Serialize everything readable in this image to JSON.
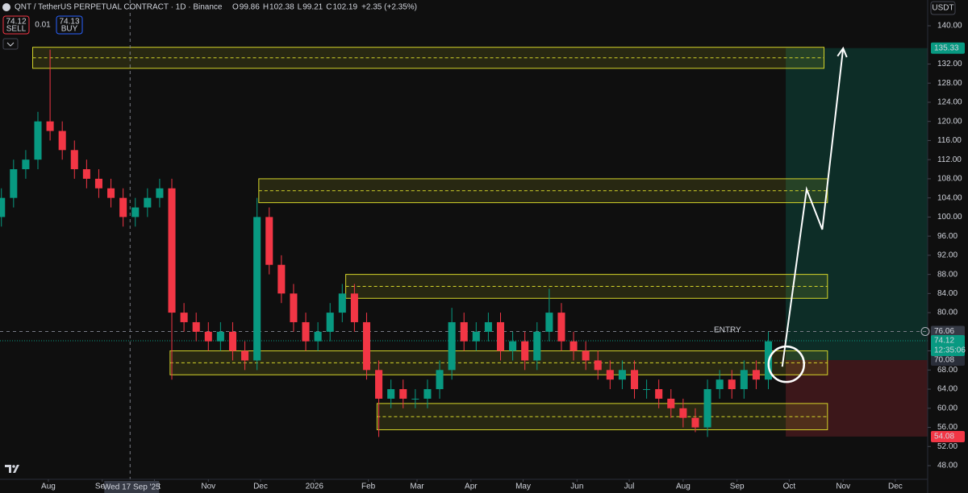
{
  "chart_data": {
    "type": "candlestick",
    "header": {
      "title": "QNT / TetherUS PERPETUAL CONTRACT · 1D · Binance",
      "ohlc": [
        {
          "label": "O",
          "value": "99.86"
        },
        {
          "label": "H",
          "value": "102.38"
        },
        {
          "label": "L",
          "value": "99.21"
        },
        {
          "label": "C",
          "value": "102.19"
        },
        {
          "label": "",
          "value": "+2.35 (+2.35%)"
        }
      ],
      "sell_price": "74.12",
      "sell_label": "SELL",
      "spread": "0.01",
      "buy_price": "74.13",
      "buy_label": "BUY",
      "currency": "USDT"
    },
    "x": [
      -27,
      -20,
      -13,
      -6,
      1,
      8,
      15,
      22,
      29,
      36,
      43,
      50,
      57,
      64,
      71,
      78,
      85,
      92,
      99,
      106,
      113,
      120,
      127,
      134,
      141,
      148,
      155,
      162,
      169,
      176,
      183,
      190,
      197,
      204,
      211,
      218,
      225,
      232,
      239,
      246,
      253,
      260,
      267,
      274,
      281,
      288,
      295,
      302,
      309,
      316,
      323,
      330,
      337,
      344,
      351,
      358,
      365,
      372,
      379,
      386,
      393,
      400,
      407,
      414
    ],
    "open": [
      100,
      104,
      110,
      112,
      120,
      118,
      114,
      110,
      108,
      106,
      104,
      100,
      102,
      104,
      106,
      80,
      78,
      76,
      74,
      76,
      72,
      70,
      100,
      90,
      84,
      78,
      74,
      76,
      80,
      84,
      78,
      68,
      62,
      64,
      62,
      62,
      64,
      68,
      78,
      74,
      76,
      78,
      72,
      74,
      70,
      76,
      80,
      74,
      72,
      70,
      68,
      66,
      68,
      64,
      64,
      62,
      60,
      58,
      56,
      64,
      66,
      64,
      68,
      66
    ],
    "high": [
      106,
      112,
      114,
      122,
      135,
      120,
      116,
      112,
      110,
      108,
      106,
      104,
      106,
      108,
      108,
      82,
      80,
      78,
      78,
      78,
      74,
      104,
      102,
      92,
      86,
      80,
      78,
      82,
      86,
      86,
      80,
      70,
      66,
      66,
      64,
      66,
      70,
      81,
      80,
      78,
      80,
      80,
      76,
      76,
      78,
      85,
      82,
      76,
      74,
      72,
      70,
      70,
      70,
      66,
      66,
      64,
      62,
      60,
      66,
      68,
      68,
      70,
      70,
      76
    ],
    "low": [
      98,
      102,
      108,
      110,
      116,
      112,
      108,
      106,
      104,
      102,
      98,
      98,
      100,
      102,
      66,
      76,
      74,
      72,
      72,
      70,
      68,
      68,
      88,
      82,
      76,
      72,
      72,
      74,
      78,
      76,
      66,
      54,
      60,
      60,
      60,
      60,
      62,
      66,
      72,
      72,
      74,
      70,
      70,
      68,
      68,
      74,
      72,
      70,
      68,
      66,
      64,
      64,
      62,
      62,
      60,
      58,
      56,
      55,
      54,
      62,
      62,
      62,
      64,
      64
    ],
    "close": [
      104,
      110,
      112,
      120,
      118,
      114,
      110,
      108,
      106,
      104,
      100,
      102,
      104,
      106,
      80,
      78,
      76,
      74,
      76,
      72,
      70,
      100,
      90,
      84,
      78,
      74,
      76,
      80,
      84,
      78,
      68,
      62,
      64,
      62,
      62,
      64,
      68,
      78,
      74,
      76,
      78,
      72,
      74,
      70,
      76,
      80,
      74,
      72,
      70,
      68,
      66,
      68,
      64,
      64,
      62,
      60,
      58,
      56,
      64,
      66,
      64,
      68,
      66,
      74
    ],
    "up_color": "#089981",
    "down_color": "#f23645",
    "xlim": [
      -27.8,
      505.6
    ],
    "xticks": [
      {
        "value": 0,
        "label": "Aug"
      },
      {
        "value": 31,
        "label": "Sep"
      },
      {
        "value": 61,
        "label": "Oct"
      },
      {
        "value": 92,
        "label": "Nov"
      },
      {
        "value": 122,
        "label": "Dec"
      },
      {
        "value": 153,
        "label": "2026"
      },
      {
        "value": 184,
        "label": "Feb"
      },
      {
        "value": 212,
        "label": "Mar"
      },
      {
        "value": 243,
        "label": "Apr"
      },
      {
        "value": 273,
        "label": "May"
      },
      {
        "value": 304,
        "label": "Jun"
      },
      {
        "value": 334,
        "label": "Jul"
      },
      {
        "value": 365,
        "label": "Aug"
      },
      {
        "value": 396,
        "label": "Sep"
      },
      {
        "value": 426,
        "label": "Oct"
      },
      {
        "value": 457,
        "label": "Nov"
      },
      {
        "value": 487,
        "label": "Dec"
      }
    ],
    "ylim": [
      45.14,
      145.39
    ],
    "yticks": [
      {
        "value": 48,
        "label": "48.00"
      },
      {
        "value": 52,
        "label": "52.00"
      },
      {
        "value": 56,
        "label": "56.00"
      },
      {
        "value": 60,
        "label": "60.00"
      },
      {
        "value": 64,
        "label": "64.00"
      },
      {
        "value": 68,
        "label": "68.00"
      },
      {
        "value": 72,
        "label": "72.00"
      },
      {
        "value": 80,
        "label": "80.00"
      },
      {
        "value": 84,
        "label": "84.00"
      },
      {
        "value": 88,
        "label": "88.00"
      },
      {
        "value": 92,
        "label": "92.00"
      },
      {
        "value": 96,
        "label": "96.00"
      },
      {
        "value": 100,
        "label": "100.00"
      },
      {
        "value": 104,
        "label": "104.00"
      },
      {
        "value": 108,
        "label": "108.00"
      },
      {
        "value": 112,
        "label": "112.00"
      },
      {
        "value": 116,
        "label": "116.00"
      },
      {
        "value": 120,
        "label": "120.00"
      },
      {
        "value": 124,
        "label": "124.00"
      },
      {
        "value": 128,
        "label": "128.00"
      },
      {
        "value": 132,
        "label": "132.00"
      },
      {
        "value": 140,
        "label": "140.00"
      }
    ],
    "zones": [
      {
        "top": 135.5,
        "bottom": 131.1,
        "x0": -9,
        "x1": 446
      },
      {
        "top": 108,
        "bottom": 103,
        "x0": 121,
        "x1": 448
      },
      {
        "top": 88,
        "bottom": 83,
        "x0": 171,
        "x1": 448
      },
      {
        "top": 72,
        "bottom": 67,
        "x0": 70,
        "x1": 448
      },
      {
        "top": 61,
        "bottom": 55.5,
        "x0": 189,
        "x1": 448
      }
    ],
    "zone_color": "#d4d42a",
    "position": {
      "x0": 424,
      "x1": 505.6,
      "target": 135.33,
      "entry": 70.08,
      "stop": 54.08
    },
    "last_price": 74.12,
    "countdown": "12:35:06",
    "crosshair": {
      "x": 47,
      "date_label": "Wed 17 Sep '25",
      "price": 76.06
    },
    "arrow": {
      "days": [
        422,
        436,
        445,
        457
      ],
      "prices": [
        68.7,
        105.8,
        97.4,
        135.3
      ]
    },
    "entry_label": "ENTRY"
  }
}
